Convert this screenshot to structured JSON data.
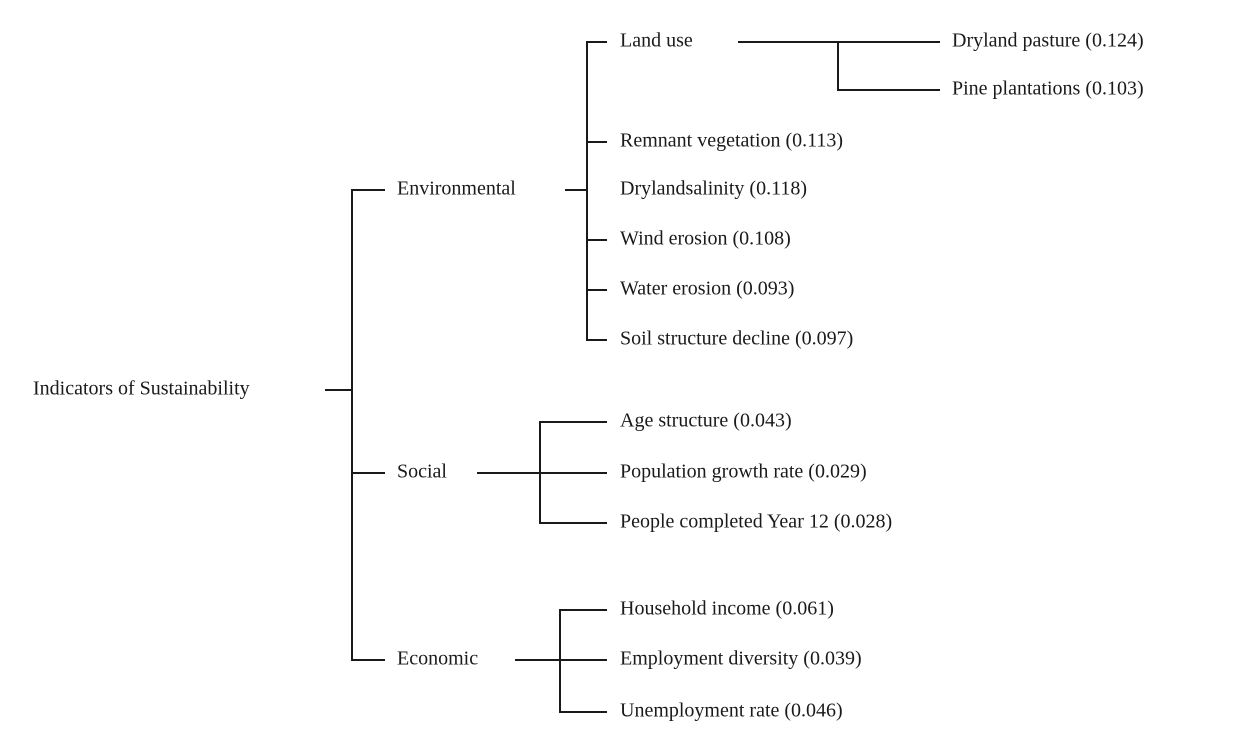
{
  "root": "Indicators of Sustainability",
  "branches": [
    {
      "label": "Environmental",
      "children": [
        {
          "label": "Land use",
          "children": [
            "Dryland pasture (0.124)",
            "Pine plantations (0.103)"
          ]
        },
        {
          "label": "Remnant vegetation (0.113)"
        },
        {
          "label": "Drylandsalinity (0.118)"
        },
        {
          "label": "Wind erosion (0.108)"
        },
        {
          "label": "Water erosion (0.093)"
        },
        {
          "label": "Soil structure decline (0.097)"
        }
      ]
    },
    {
      "label": "Social",
      "children": [
        {
          "label": "Age structure (0.043)"
        },
        {
          "label": "Population growth rate (0.029)"
        },
        {
          "label": "People completed Year 12 (0.028)"
        }
      ]
    },
    {
      "label": "Economic",
      "children": [
        {
          "label": "Household income (0.061)"
        },
        {
          "label": "Employment diversity (0.039)"
        },
        {
          "label": "Unemployment rate (0.046)"
        }
      ]
    }
  ]
}
